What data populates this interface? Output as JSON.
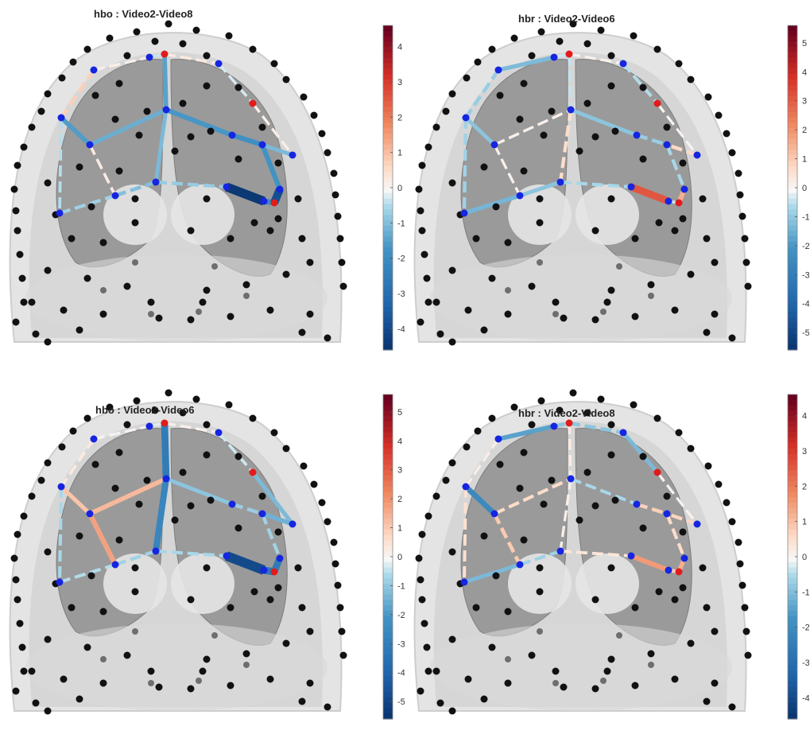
{
  "chart_data": [
    {
      "type": "brain-connectivity",
      "title": "hbo : Video2-Video8",
      "colorbar": {
        "ticks": [
          "4",
          "3",
          "2",
          "1",
          "0",
          "-1",
          "-2",
          "-3",
          "-4"
        ],
        "range": [
          -4.6,
          4.6
        ]
      },
      "edges": [
        {
          "from": "F1",
          "to": "F2",
          "value": 0.2
        },
        {
          "from": "F2",
          "to": "F3",
          "value": -0.3
        },
        {
          "from": "F3",
          "to": "F4",
          "value": 0.3
        },
        {
          "from": "F4",
          "to": "F5",
          "value": -0.2
        },
        {
          "from": "F5",
          "to": "F6",
          "value": 0.2
        },
        {
          "from": "M1",
          "to": "M2",
          "value": -1.5
        },
        {
          "from": "M2",
          "to": "M3",
          "value": -1.2
        },
        {
          "from": "M3",
          "to": "M4",
          "value": -1.6
        },
        {
          "from": "M4",
          "to": "M5",
          "value": -1.8
        },
        {
          "from": "M5",
          "to": "M6",
          "value": -1.7
        },
        {
          "from": "L1",
          "to": "L2",
          "value": -0.6
        },
        {
          "from": "L2",
          "to": "L3",
          "value": -0.9
        },
        {
          "from": "L3",
          "to": "L4",
          "value": -0.7
        },
        {
          "from": "L4",
          "to": "L5",
          "value": -4.4
        },
        {
          "from": "L5",
          "to": "L6",
          "value": -2.0
        },
        {
          "from": "F3",
          "to": "M3",
          "value": -1.4
        },
        {
          "from": "M3",
          "to": "L3",
          "value": -1.0
        },
        {
          "from": "M2",
          "to": "L2",
          "value": 0.3
        },
        {
          "from": "M6",
          "to": "L6",
          "value": -3.8
        },
        {
          "from": "F1",
          "to": "M1",
          "value": 0.8
        },
        {
          "from": "M1",
          "to": "L1",
          "value": -0.4
        },
        {
          "from": "F6",
          "to": "M5",
          "value": -1.0
        }
      ]
    },
    {
      "type": "brain-connectivity",
      "title": "hbr : Video2-Video6",
      "colorbar": {
        "ticks": [
          "5",
          "4",
          "3",
          "2",
          "1",
          "0",
          "-1",
          "-2",
          "-3",
          "-4",
          "-5"
        ],
        "range": [
          -5.6,
          5.6
        ]
      },
      "edges": [
        {
          "from": "F1",
          "to": "F2",
          "value": -1.2
        },
        {
          "from": "F2",
          "to": "F3",
          "value": -0.3
        },
        {
          "from": "F3",
          "to": "F4",
          "value": 0.2
        },
        {
          "from": "F4",
          "to": "F5",
          "value": -0.5
        },
        {
          "from": "F5",
          "to": "F6",
          "value": 0.1
        },
        {
          "from": "M1",
          "to": "M2",
          "value": -1.0
        },
        {
          "from": "M2",
          "to": "M3",
          "value": 0.2
        },
        {
          "from": "M3",
          "to": "M4",
          "value": -1.0
        },
        {
          "from": "M4",
          "to": "M5",
          "value": -0.8
        },
        {
          "from": "M5",
          "to": "M6",
          "value": -0.6
        },
        {
          "from": "L1",
          "to": "L2",
          "value": -1.3
        },
        {
          "from": "L2",
          "to": "L3",
          "value": -1.0
        },
        {
          "from": "L3",
          "to": "L4",
          "value": -0.6
        },
        {
          "from": "L4",
          "to": "L5",
          "value": 3.2
        },
        {
          "from": "L5",
          "to": "L6",
          "value": -0.3
        },
        {
          "from": "F3",
          "to": "M3",
          "value": -0.4
        },
        {
          "from": "M3",
          "to": "L3",
          "value": 0.7
        },
        {
          "from": "M2",
          "to": "L2",
          "value": 0.2
        },
        {
          "from": "M6",
          "to": "L6",
          "value": 1.6
        },
        {
          "from": "F1",
          "to": "M1",
          "value": -0.8
        },
        {
          "from": "M1",
          "to": "L1",
          "value": -0.7
        },
        {
          "from": "F6",
          "to": "M5",
          "value": 0.8
        }
      ]
    },
    {
      "type": "brain-connectivity",
      "title": "hbo : Video2-Video6",
      "colorbar": {
        "ticks": [
          "5",
          "4",
          "3",
          "2",
          "1",
          "0",
          "-1",
          "-2",
          "-3",
          "-4",
          "-5"
        ],
        "range": [
          -5.6,
          5.6
        ]
      },
      "edges": [
        {
          "from": "F1",
          "to": "F2",
          "value": 0.1
        },
        {
          "from": "F2",
          "to": "F3",
          "value": -0.2
        },
        {
          "from": "F3",
          "to": "F4",
          "value": 0.2
        },
        {
          "from": "F4",
          "to": "F5",
          "value": -0.3
        },
        {
          "from": "F5",
          "to": "F6",
          "value": -1.2
        },
        {
          "from": "M1",
          "to": "M2",
          "value": 1.2
        },
        {
          "from": "M2",
          "to": "M3",
          "value": 1.4
        },
        {
          "from": "M3",
          "to": "M4",
          "value": -1.0
        },
        {
          "from": "M4",
          "to": "M5",
          "value": -0.8
        },
        {
          "from": "M5",
          "to": "M6",
          "value": -0.7
        },
        {
          "from": "L1",
          "to": "L2",
          "value": -0.5
        },
        {
          "from": "L2",
          "to": "L3",
          "value": -0.7
        },
        {
          "from": "L3",
          "to": "L4",
          "value": -0.6
        },
        {
          "from": "L4",
          "to": "L5",
          "value": -4.8
        },
        {
          "from": "L5",
          "to": "L6",
          "value": -3.2
        },
        {
          "from": "F3",
          "to": "M3",
          "value": -3.0
        },
        {
          "from": "M3",
          "to": "L3",
          "value": -2.6
        },
        {
          "from": "M2",
          "to": "L2",
          "value": 1.8
        },
        {
          "from": "M6",
          "to": "L6",
          "value": -3.0
        },
        {
          "from": "F1",
          "to": "M1",
          "value": 0.4
        },
        {
          "from": "M1",
          "to": "L1",
          "value": -0.6
        },
        {
          "from": "F6",
          "to": "M5",
          "value": -1.4
        }
      ]
    },
    {
      "type": "brain-connectivity",
      "title": "hbr : Video2-Video8",
      "colorbar": {
        "ticks": [
          "4",
          "3",
          "2",
          "1",
          "0",
          "-1",
          "-2",
          "-3",
          "-4"
        ],
        "range": [
          -4.6,
          4.6
        ]
      },
      "edges": [
        {
          "from": "F1",
          "to": "F2",
          "value": -1.4
        },
        {
          "from": "F2",
          "to": "F3",
          "value": -0.8
        },
        {
          "from": "F3",
          "to": "F4",
          "value": -0.8
        },
        {
          "from": "F4",
          "to": "F5",
          "value": -1.0
        },
        {
          "from": "F5",
          "to": "F6",
          "value": 0.1
        },
        {
          "from": "M1",
          "to": "M2",
          "value": -2.0
        },
        {
          "from": "M2",
          "to": "M3",
          "value": 0.6
        },
        {
          "from": "M3",
          "to": "M4",
          "value": -0.5
        },
        {
          "from": "M4",
          "to": "M5",
          "value": 0.8
        },
        {
          "from": "M5",
          "to": "M6",
          "value": 0.6
        },
        {
          "from": "L1",
          "to": "L2",
          "value": -1.0
        },
        {
          "from": "L2",
          "to": "L3",
          "value": -0.6
        },
        {
          "from": "L3",
          "to": "L4",
          "value": 0.4
        },
        {
          "from": "L4",
          "to": "L5",
          "value": 1.6
        },
        {
          "from": "L5",
          "to": "L6",
          "value": 0.8
        },
        {
          "from": "F3",
          "to": "M3",
          "value": 0.3
        },
        {
          "from": "M3",
          "to": "L3",
          "value": 0.2
        },
        {
          "from": "M2",
          "to": "L2",
          "value": 0.9
        },
        {
          "from": "M6",
          "to": "L6",
          "value": 1.3
        },
        {
          "from": "F1",
          "to": "M1",
          "value": 0.2
        },
        {
          "from": "M1",
          "to": "L1",
          "value": 0.5
        },
        {
          "from": "F6",
          "to": "M5",
          "value": 0.7
        }
      ]
    }
  ]
}
